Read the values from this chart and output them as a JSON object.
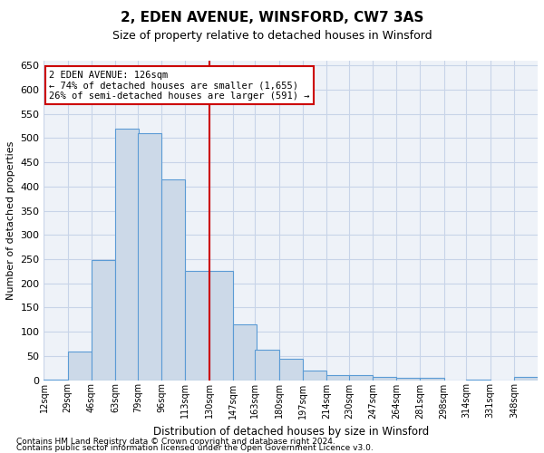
{
  "title": "2, EDEN AVENUE, WINSFORD, CW7 3AS",
  "subtitle": "Size of property relative to detached houses in Winsford",
  "xlabel": "Distribution of detached houses by size in Winsford",
  "ylabel": "Number of detached properties",
  "footnote1": "Contains HM Land Registry data © Crown copyright and database right 2024.",
  "footnote2": "Contains public sector information licensed under the Open Government Licence v3.0.",
  "annotation_line1": "2 EDEN AVENUE: 126sqm",
  "annotation_line2": "← 74% of detached houses are smaller (1,655)",
  "annotation_line3": "26% of semi-detached houses are larger (591) →",
  "vline_x": 130,
  "bins": [
    12,
    29,
    46,
    63,
    79,
    96,
    113,
    130,
    147,
    163,
    180,
    197,
    214,
    230,
    247,
    264,
    281,
    298,
    314,
    331,
    348
  ],
  "bin_labels": [
    "12sqm",
    "29sqm",
    "46sqm",
    "63sqm",
    "79sqm",
    "96sqm",
    "113sqm",
    "130sqm",
    "147sqm",
    "163sqm",
    "180sqm",
    "197sqm",
    "214sqm",
    "230sqm",
    "247sqm",
    "264sqm",
    "281sqm",
    "298sqm",
    "314sqm",
    "331sqm",
    "348sqm"
  ],
  "counts": [
    2,
    60,
    248,
    520,
    510,
    415,
    226,
    226,
    115,
    63,
    45,
    20,
    11,
    10,
    7,
    5,
    5,
    0,
    1,
    0,
    6
  ],
  "bar_facecolor": "#ccd9e8",
  "bar_edgecolor": "#5b9bd5",
  "vline_color": "#cc0000",
  "grid_color": "#c8d4e8",
  "background_color": "#eef2f8",
  "ylim": [
    0,
    660
  ],
  "yticks": [
    0,
    50,
    100,
    150,
    200,
    250,
    300,
    350,
    400,
    450,
    500,
    550,
    600,
    650
  ],
  "title_fontsize": 11,
  "subtitle_fontsize": 9,
  "ylabel_fontsize": 8,
  "xlabel_fontsize": 8.5,
  "xtick_fontsize": 7,
  "ytick_fontsize": 8,
  "annot_fontsize": 7.5,
  "footnote_fontsize": 6.5
}
